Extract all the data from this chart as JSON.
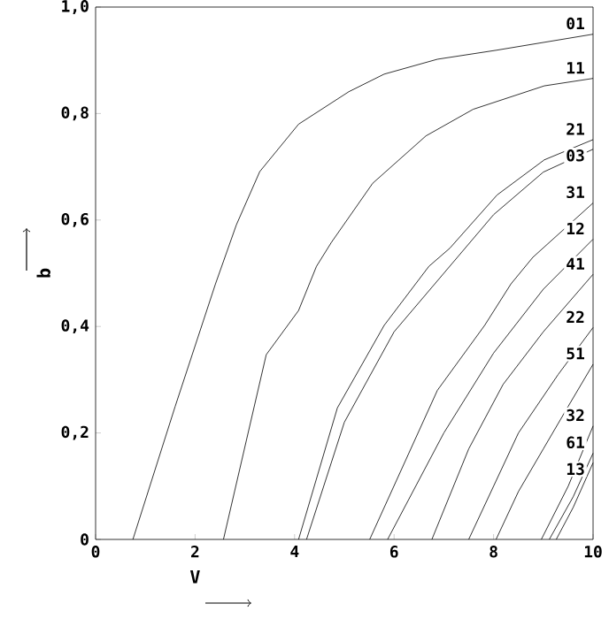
{
  "chart_data": {
    "type": "line",
    "xlabel": "V",
    "ylabel": "b",
    "xlim": [
      0,
      10
    ],
    "ylim": [
      0,
      1
    ],
    "xticks": [
      0,
      2,
      4,
      6,
      8,
      10
    ],
    "yticks": [
      0,
      {
        "value": 0.2,
        "label": "0,2"
      },
      {
        "value": 0.4,
        "label": "0,4"
      },
      {
        "value": 0.6,
        "label": "0,6"
      },
      {
        "value": 0.8,
        "label": "0,8"
      },
      {
        "value": 1.0,
        "label": "1,0"
      }
    ],
    "grid": false,
    "legend": false,
    "line_style": "solid",
    "series": [
      {
        "name": "01",
        "color": "#000000",
        "x": [
          0.75,
          1.6,
          2.41,
          2.83,
          3.3,
          4.08,
          5.09,
          5.8,
          6.87,
          8.06,
          10
        ],
        "values": [
          0,
          0.25,
          0.48,
          0.591,
          0.691,
          0.78,
          0.841,
          0.874,
          0.902,
          0.919,
          0.949
        ]
      },
      {
        "name": "11",
        "color": "#000000",
        "x": [
          2.57,
          3.43,
          4.08,
          4.44,
          4.74,
          5.57,
          6.64,
          7.59,
          9.02,
          10
        ],
        "values": [
          0,
          0.347,
          0.43,
          0.513,
          0.558,
          0.669,
          0.758,
          0.808,
          0.852,
          0.866
        ]
      },
      {
        "name": "21",
        "color": "#000000",
        "x": [
          4.08,
          4.86,
          5.8,
          6.7,
          7.12,
          8.07,
          9.02,
          10
        ],
        "values": [
          0,
          0.247,
          0.402,
          0.513,
          0.547,
          0.647,
          0.713,
          0.751
        ]
      },
      {
        "name": "03",
        "color": "#000000",
        "x": [
          4.24,
          5.0,
          6.0,
          7.0,
          8.0,
          9.0,
          10
        ],
        "values": [
          0,
          0.22,
          0.39,
          0.5,
          0.61,
          0.69,
          0.733
        ]
      },
      {
        "name": "31",
        "color": "#000000",
        "x": [
          5.51,
          6.87,
          7.82,
          8.35,
          8.79,
          10
        ],
        "values": [
          0,
          0.28,
          0.402,
          0.48,
          0.53,
          0.632
        ]
      },
      {
        "name": "12",
        "color": "#000000",
        "x": [
          5.87,
          7.0,
          8.0,
          9.0,
          10
        ],
        "values": [
          0,
          0.2,
          0.35,
          0.47,
          0.564
        ]
      },
      {
        "name": "41",
        "color": "#000000",
        "x": [
          6.76,
          7.5,
          8.19,
          9.0,
          10
        ],
        "values": [
          0,
          0.17,
          0.291,
          0.39,
          0.498
        ]
      },
      {
        "name": "22",
        "color": "#000000",
        "x": [
          7.5,
          8.5,
          9.3,
          10
        ],
        "values": [
          0,
          0.2,
          0.31,
          0.398
        ]
      },
      {
        "name": "51",
        "color": "#000000",
        "x": [
          8.05,
          8.5,
          9.0,
          9.5,
          10
        ],
        "values": [
          0,
          0.09,
          0.17,
          0.25,
          0.329
        ]
      },
      {
        "name": "32",
        "color": "#000000",
        "x": [
          8.96,
          9.5,
          10
        ],
        "values": [
          0,
          0.1,
          0.213
        ]
      },
      {
        "name": "61",
        "color": "#000000",
        "x": [
          9.12,
          9.6,
          10
        ],
        "values": [
          0,
          0.08,
          0.162
        ]
      },
      {
        "name": "13",
        "color": "#000000",
        "x": [
          9.26,
          9.6,
          10
        ],
        "values": [
          0,
          0.06,
          0.144
        ]
      }
    ]
  }
}
